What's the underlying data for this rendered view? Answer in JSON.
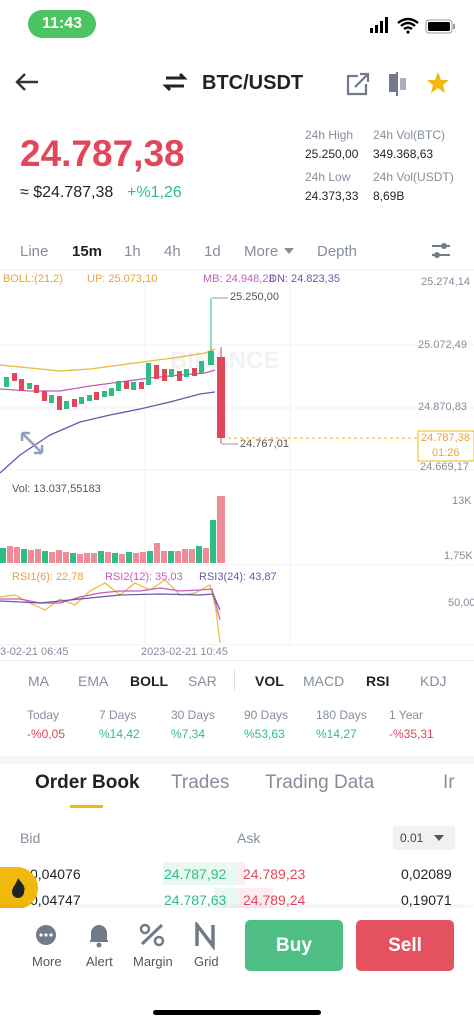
{
  "status": {
    "time": "11:43"
  },
  "header": {
    "pair": "BTC/USDT"
  },
  "price": {
    "last": "24.787,38",
    "fiat": "≈ $24.787,38",
    "change": "+%1,26"
  },
  "stats": [
    {
      "label": "24h High",
      "value": "25.250,00"
    },
    {
      "label": "24h Vol(BTC)",
      "value": "349.368,63"
    },
    {
      "label": "24h Low",
      "value": "24.373,33"
    },
    {
      "label": "24h Vol(USDT)",
      "value": "8,69B"
    }
  ],
  "tabs": [
    "Line",
    "15m",
    "1h",
    "4h",
    "1d",
    "More",
    "Depth"
  ],
  "boll": {
    "name": "BOLL:(21,2)",
    "up": "UP: 25.073,10",
    "mb": "MB: 24.948,23",
    "dn": "DN: 24.823,35"
  },
  "price_axis": [
    "25.274,14",
    "25.072,49",
    "24.870,83",
    "24.669,17"
  ],
  "current": {
    "price": "24.787,38",
    "countdown": "01:26"
  },
  "markers": {
    "high": "25.250,00",
    "low": "24.767,01"
  },
  "volume": {
    "label": "Vol: 13.037,55183",
    "axis": [
      "13K",
      "1,75K"
    ]
  },
  "rsi": {
    "rsi1": "RSI1(6): 22,78",
    "rsi2": "RSI2(12): 35,03",
    "rsi3": "RSI3(24): 43,87",
    "axis": "50,00"
  },
  "time_axis": [
    "3-02-21 06:45",
    "2023-02-21 10:45"
  ],
  "indicators": [
    "MA",
    "EMA",
    "BOLL",
    "SAR",
    "VOL",
    "MACD",
    "RSI",
    "KDJ"
  ],
  "performance": [
    {
      "label": "Today",
      "value": "-%0,05"
    },
    {
      "label": "7 Days",
      "value": "%14,42"
    },
    {
      "label": "30 Days",
      "value": "%7,34"
    },
    {
      "label": "90 Days",
      "value": "%53,63"
    },
    {
      "label": "180 Days",
      "value": "%14,27"
    },
    {
      "label": "1 Year",
      "value": "-%35,31"
    }
  ],
  "book_tabs": [
    "Order Book",
    "Trades",
    "Trading Data",
    "Ir"
  ],
  "book": {
    "bid": "Bid",
    "ask": "Ask",
    "precision": "0.01",
    "rows": [
      [
        "0,04076",
        "24.787,92",
        "24.789,23",
        "0,02089"
      ],
      [
        "0,04747",
        "24.787,63",
        "24.789,24",
        "0,19071"
      ]
    ]
  },
  "nav": [
    "More",
    "Alert",
    "Margin",
    "Grid"
  ],
  "actions": {
    "buy": "Buy",
    "sell": "Sell"
  }
}
